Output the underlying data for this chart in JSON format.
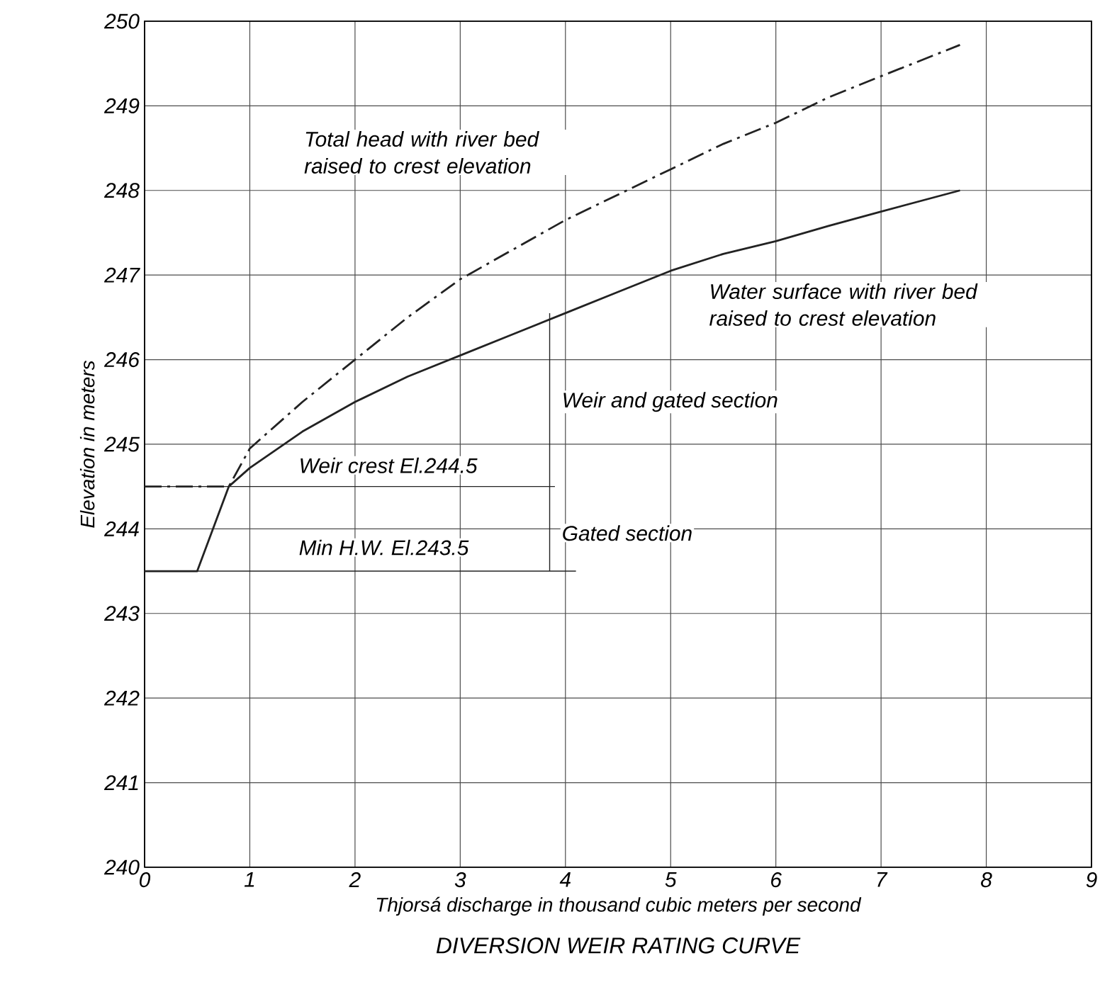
{
  "chart_data": {
    "type": "line",
    "title": "DIVERSION WEIR RATING CURVE",
    "xlabel": "Thjorsá discharge in thousand  cubic meters per second",
    "ylabel": "Elevation in meters",
    "xlim": [
      0,
      9
    ],
    "ylim": [
      240,
      250
    ],
    "xticks": [
      0,
      1,
      2,
      3,
      4,
      5,
      6,
      7,
      8,
      9
    ],
    "yticks": [
      240,
      241,
      242,
      243,
      244,
      245,
      246,
      247,
      248,
      249,
      250
    ],
    "grid": true,
    "marker": "none",
    "series": [
      {
        "color": "#222222",
        "line_style": "solid",
        "x": [
          0,
          0.5,
          0.8,
          1,
          1.5,
          2,
          2.5,
          3,
          3.5,
          4,
          4.5,
          5,
          5.5,
          6,
          6.5,
          7,
          7.75
        ],
        "values": [
          243.5,
          243.5,
          244.5,
          244.72,
          245.15,
          245.5,
          245.8,
          246.05,
          246.3,
          246.55,
          246.8,
          247.05,
          247.25,
          247.4,
          247.58,
          247.75,
          248.0
        ]
      },
      {
        "color": "#222222",
        "line_style": "dashed",
        "x": [
          0,
          0.8,
          1,
          1.5,
          2,
          2.5,
          3,
          3.5,
          4,
          4.5,
          5,
          5.5,
          6,
          6.5,
          7,
          7.75
        ],
        "values": [
          244.5,
          244.5,
          244.95,
          245.5,
          246.0,
          246.5,
          246.95,
          247.3,
          247.65,
          247.95,
          248.25,
          248.55,
          248.8,
          249.1,
          249.35,
          249.72
        ]
      },
      {
        "color": "#222222",
        "line_style": "solid",
        "x": [
          0,
          3.9
        ],
        "values": [
          244.5,
          244.5
        ]
      },
      {
        "color": "#222222",
        "line_style": "solid",
        "x": [
          0,
          4.1
        ],
        "values": [
          243.5,
          243.5
        ]
      },
      {
        "color": "#222222",
        "line_style": "solid",
        "x": [
          3.85,
          3.85,
          3.85
        ],
        "values": [
          243.5,
          244.5,
          246.55
        ]
      }
    ],
    "annotations": [
      "Total head with river bed raised to crest elevation",
      "Water surface with river bed raised to crest elevation",
      "Weir and gated section",
      "Weir crest El.244.5",
      "Min H.W. El.243.5",
      "Gated section"
    ]
  }
}
